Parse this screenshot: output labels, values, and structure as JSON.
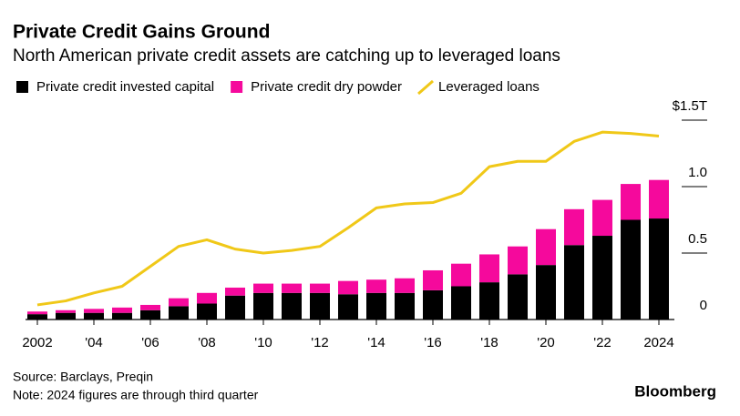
{
  "chart_data": {
    "type": "bar",
    "title": "Private Credit Gains Ground",
    "subtitle": "North American private credit assets are catching up to leveraged loans",
    "categories": [
      "2002",
      null,
      "'04",
      null,
      "'06",
      null,
      "'08",
      null,
      "'10",
      null,
      "'12",
      null,
      "'14",
      null,
      "'16",
      null,
      "'18",
      null,
      "'20",
      null,
      "'22",
      null,
      "2024"
    ],
    "series": [
      {
        "name": "Private credit invested capital",
        "color": "#000000",
        "kind": "bar",
        "values": [
          0.04,
          0.05,
          0.05,
          0.05,
          0.07,
          0.1,
          0.12,
          0.18,
          0.2,
          0.2,
          0.2,
          0.19,
          0.2,
          0.2,
          0.22,
          0.25,
          0.28,
          0.34,
          0.41,
          0.56,
          0.63,
          0.75,
          0.76
        ]
      },
      {
        "name": "Private credit dry powder",
        "color": "#f5099c",
        "kind": "bar",
        "values": [
          0.02,
          0.02,
          0.03,
          0.04,
          0.04,
          0.06,
          0.08,
          0.06,
          0.07,
          0.07,
          0.07,
          0.1,
          0.1,
          0.11,
          0.15,
          0.17,
          0.21,
          0.21,
          0.27,
          0.27,
          0.27,
          0.27,
          0.29
        ]
      },
      {
        "name": "Leveraged loans",
        "color": "#f0c818",
        "kind": "line",
        "values": [
          0.11,
          0.14,
          0.2,
          0.25,
          0.4,
          0.55,
          0.6,
          0.53,
          0.5,
          0.52,
          0.55,
          0.69,
          0.84,
          0.87,
          0.88,
          0.95,
          1.15,
          1.19,
          1.19,
          1.34,
          1.41,
          1.4,
          1.38
        ]
      }
    ],
    "ylim": [
      0,
      1.5
    ],
    "yticks": [
      0,
      0.5,
      {
        "value": 1,
        "label": "1.0"
      },
      {
        "value": 1.5,
        "label": "$1.5T"
      }
    ],
    "source": "Source: Barclays, Preqin",
    "note": "Note: 2024 figures are through third quarter",
    "brand": "Bloomberg"
  }
}
